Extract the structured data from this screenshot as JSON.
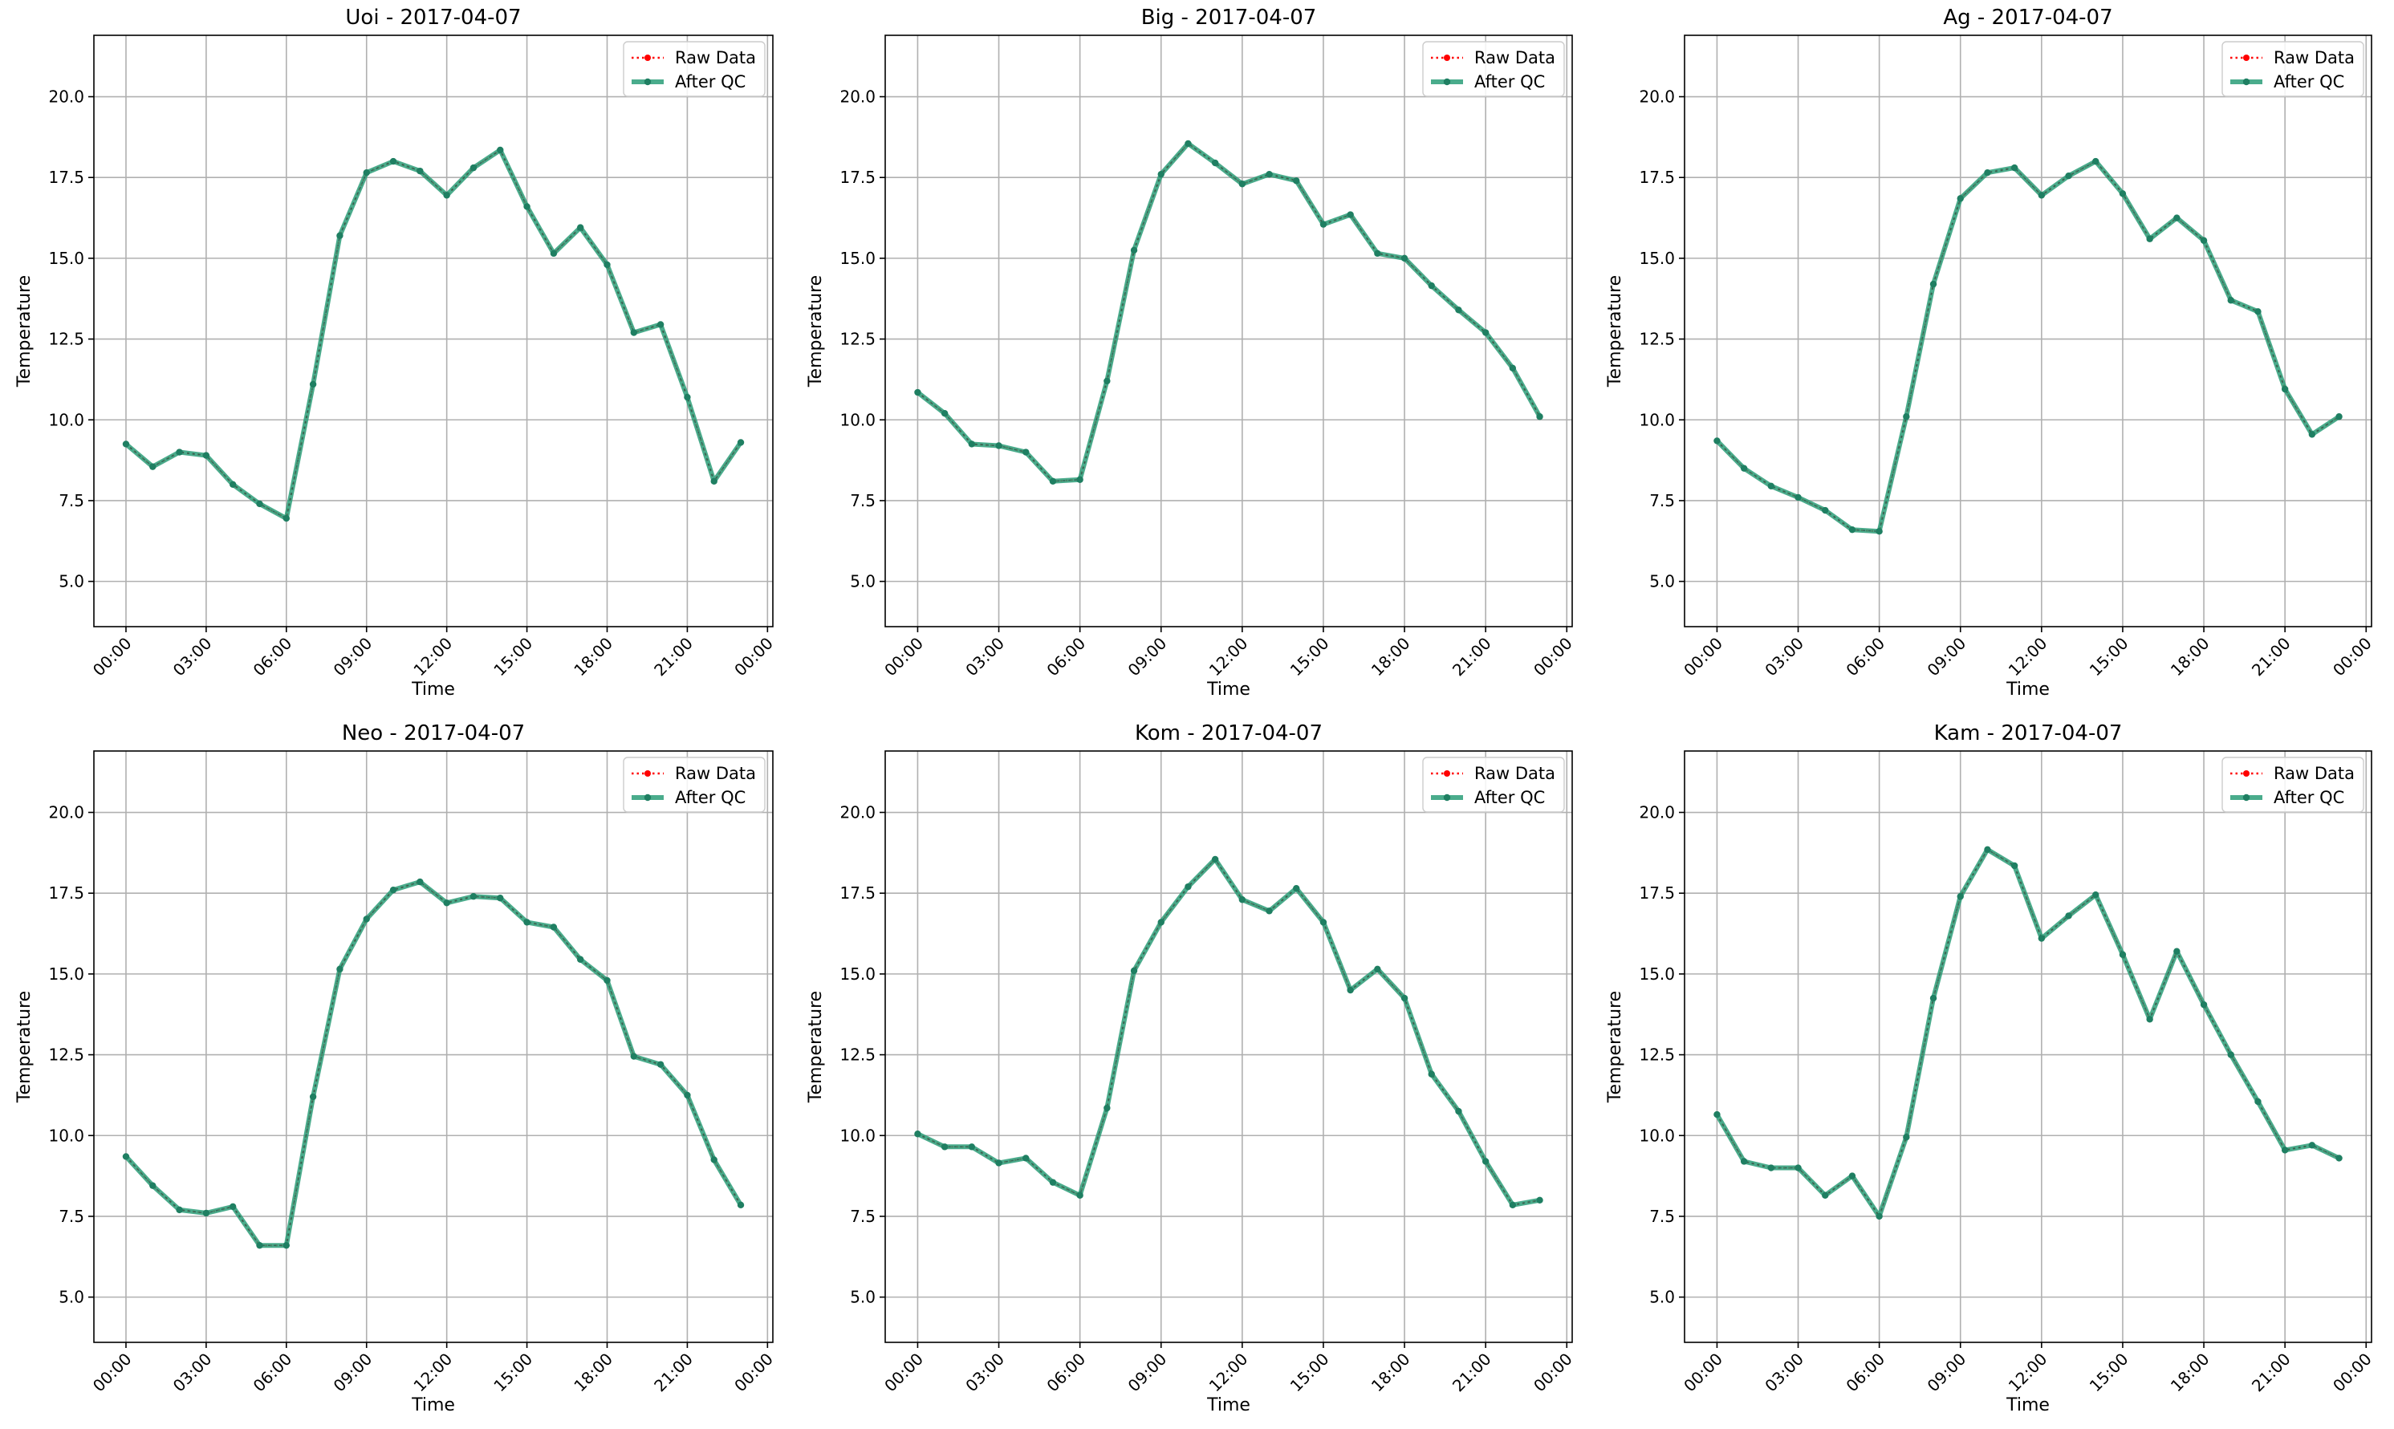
{
  "figure": {
    "legend_labels": {
      "raw": "Raw Data",
      "qc": "After QC"
    },
    "colors": {
      "raw": "#ff0000",
      "qc": "#2a9d78",
      "qc_marker": "#1f7f62",
      "grid": "#b0b0b0"
    }
  },
  "chart_data": [
    {
      "type": "line",
      "title": "Uoi - 2017-04-07",
      "xlabel": "Time",
      "ylabel": "Temperature",
      "x_ticks": [
        "00:00",
        "03:00",
        "06:00",
        "09:00",
        "12:00",
        "15:00",
        "18:00",
        "21:00",
        "00:00"
      ],
      "y_ticks": [
        "5.0",
        "7.5",
        "10.0",
        "12.5",
        "15.0",
        "17.5",
        "20.0"
      ],
      "xlim_hours": [
        -1.2,
        24.2
      ],
      "ylim": [
        3.6,
        21.9
      ],
      "grid": true,
      "legend": "upper-right",
      "x_hours": [
        0,
        1,
        2,
        3,
        4,
        5,
        6,
        7,
        8,
        9,
        10,
        11,
        12,
        13,
        14,
        15,
        16,
        17,
        18,
        19,
        20,
        21,
        22,
        23
      ],
      "series": [
        {
          "name": "Raw Data",
          "values": [
            9.25,
            8.55,
            9.0,
            8.9,
            8.0,
            7.4,
            6.95,
            11.1,
            15.7,
            17.65,
            18.0,
            17.7,
            16.95,
            17.8,
            18.35,
            16.6,
            15.15,
            15.95,
            14.8,
            12.7,
            12.95,
            10.7,
            8.1,
            9.3
          ]
        },
        {
          "name": "After QC",
          "values": [
            9.25,
            8.55,
            9.0,
            8.9,
            8.0,
            7.4,
            6.95,
            11.1,
            15.7,
            17.65,
            18.0,
            17.7,
            16.95,
            17.8,
            18.35,
            16.6,
            15.15,
            15.95,
            14.8,
            12.7,
            12.95,
            10.7,
            8.1,
            9.3
          ]
        }
      ]
    },
    {
      "type": "line",
      "title": "Big - 2017-04-07",
      "xlabel": "Time",
      "ylabel": "Temperature",
      "x_ticks": [
        "00:00",
        "03:00",
        "06:00",
        "09:00",
        "12:00",
        "15:00",
        "18:00",
        "21:00",
        "00:00"
      ],
      "y_ticks": [
        "5.0",
        "7.5",
        "10.0",
        "12.5",
        "15.0",
        "17.5",
        "20.0"
      ],
      "xlim_hours": [
        -1.2,
        24.2
      ],
      "ylim": [
        3.6,
        21.9
      ],
      "grid": true,
      "legend": "upper-right",
      "x_hours": [
        0,
        1,
        2,
        3,
        4,
        5,
        6,
        7,
        8,
        9,
        10,
        11,
        12,
        13,
        14,
        15,
        16,
        17,
        18,
        19,
        20,
        21,
        22,
        23
      ],
      "series": [
        {
          "name": "Raw Data",
          "values": [
            10.85,
            10.2,
            9.25,
            9.2,
            9.0,
            8.1,
            8.15,
            11.2,
            15.25,
            17.6,
            18.55,
            17.95,
            17.3,
            17.6,
            17.4,
            16.05,
            16.35,
            15.15,
            15.0,
            14.15,
            13.4,
            12.7,
            11.6,
            10.1
          ]
        },
        {
          "name": "After QC",
          "values": [
            10.85,
            10.2,
            9.25,
            9.2,
            9.0,
            8.1,
            8.15,
            11.2,
            15.25,
            17.6,
            18.55,
            17.95,
            17.3,
            17.6,
            17.4,
            16.05,
            16.35,
            15.15,
            15.0,
            14.15,
            13.4,
            12.7,
            11.6,
            10.1
          ]
        }
      ]
    },
    {
      "type": "line",
      "title": "Ag - 2017-04-07",
      "xlabel": "Time",
      "ylabel": "Temperature",
      "x_ticks": [
        "00:00",
        "03:00",
        "06:00",
        "09:00",
        "12:00",
        "15:00",
        "18:00",
        "21:00",
        "00:00"
      ],
      "y_ticks": [
        "5.0",
        "7.5",
        "10.0",
        "12.5",
        "15.0",
        "17.5",
        "20.0"
      ],
      "xlim_hours": [
        -1.2,
        24.2
      ],
      "ylim": [
        3.6,
        21.9
      ],
      "grid": true,
      "legend": "upper-right",
      "x_hours": [
        0,
        1,
        2,
        3,
        4,
        5,
        6,
        7,
        8,
        9,
        10,
        11,
        12,
        13,
        14,
        15,
        16,
        17,
        18,
        19,
        20,
        21,
        22,
        23
      ],
      "series": [
        {
          "name": "Raw Data",
          "values": [
            9.35,
            8.5,
            7.95,
            7.6,
            7.2,
            6.6,
            6.55,
            10.1,
            14.2,
            16.85,
            17.65,
            17.8,
            16.95,
            17.55,
            18.0,
            17.0,
            15.6,
            16.25,
            15.55,
            13.7,
            13.35,
            10.95,
            9.55,
            10.1
          ]
        },
        {
          "name": "After QC",
          "values": [
            9.35,
            8.5,
            7.95,
            7.6,
            7.2,
            6.6,
            6.55,
            10.1,
            14.2,
            16.85,
            17.65,
            17.8,
            16.95,
            17.55,
            18.0,
            17.0,
            15.6,
            16.25,
            15.55,
            13.7,
            13.35,
            10.95,
            9.55,
            10.1
          ]
        }
      ]
    },
    {
      "type": "line",
      "title": "Neo - 2017-04-07",
      "xlabel": "Time",
      "ylabel": "Temperature",
      "x_ticks": [
        "00:00",
        "03:00",
        "06:00",
        "09:00",
        "12:00",
        "15:00",
        "18:00",
        "21:00",
        "00:00"
      ],
      "y_ticks": [
        "5.0",
        "7.5",
        "10.0",
        "12.5",
        "15.0",
        "17.5",
        "20.0"
      ],
      "xlim_hours": [
        -1.2,
        24.2
      ],
      "ylim": [
        3.6,
        21.9
      ],
      "grid": true,
      "legend": "upper-right",
      "x_hours": [
        0,
        1,
        2,
        3,
        4,
        5,
        6,
        7,
        8,
        9,
        10,
        11,
        12,
        13,
        14,
        15,
        16,
        17,
        18,
        19,
        20,
        21,
        22,
        23
      ],
      "series": [
        {
          "name": "Raw Data",
          "values": [
            9.35,
            8.45,
            7.7,
            7.6,
            7.8,
            6.6,
            6.6,
            11.2,
            15.15,
            16.7,
            17.6,
            17.85,
            17.2,
            17.4,
            17.35,
            16.6,
            16.45,
            15.45,
            14.8,
            12.45,
            12.2,
            11.25,
            9.25,
            7.85
          ]
        },
        {
          "name": "After QC",
          "values": [
            9.35,
            8.45,
            7.7,
            7.6,
            7.8,
            6.6,
            6.6,
            11.2,
            15.15,
            16.7,
            17.6,
            17.85,
            17.2,
            17.4,
            17.35,
            16.6,
            16.45,
            15.45,
            14.8,
            12.45,
            12.2,
            11.25,
            9.25,
            7.85
          ]
        }
      ]
    },
    {
      "type": "line",
      "title": "Kom - 2017-04-07",
      "xlabel": "Time",
      "ylabel": "Temperature",
      "x_ticks": [
        "00:00",
        "03:00",
        "06:00",
        "09:00",
        "12:00",
        "15:00",
        "18:00",
        "21:00",
        "00:00"
      ],
      "y_ticks": [
        "5.0",
        "7.5",
        "10.0",
        "12.5",
        "15.0",
        "17.5",
        "20.0"
      ],
      "xlim_hours": [
        -1.2,
        24.2
      ],
      "ylim": [
        3.6,
        21.9
      ],
      "grid": true,
      "legend": "upper-right",
      "x_hours": [
        0,
        1,
        2,
        3,
        4,
        5,
        6,
        7,
        8,
        9,
        10,
        11,
        12,
        13,
        14,
        15,
        16,
        17,
        18,
        19,
        20,
        21,
        22,
        23
      ],
      "series": [
        {
          "name": "Raw Data",
          "values": [
            10.05,
            9.65,
            9.65,
            9.15,
            9.3,
            8.55,
            8.15,
            10.85,
            15.1,
            16.6,
            17.7,
            18.55,
            17.3,
            16.95,
            17.65,
            16.6,
            14.5,
            15.15,
            14.25,
            11.9,
            10.75,
            9.2,
            7.85,
            8.0
          ]
        },
        {
          "name": "After QC",
          "values": [
            10.05,
            9.65,
            9.65,
            9.15,
            9.3,
            8.55,
            8.15,
            10.85,
            15.1,
            16.6,
            17.7,
            18.55,
            17.3,
            16.95,
            17.65,
            16.6,
            14.5,
            15.15,
            14.25,
            11.9,
            10.75,
            9.2,
            7.85,
            8.0
          ]
        }
      ]
    },
    {
      "type": "line",
      "title": "Kam - 2017-04-07",
      "xlabel": "Time",
      "ylabel": "Temperature",
      "x_ticks": [
        "00:00",
        "03:00",
        "06:00",
        "09:00",
        "12:00",
        "15:00",
        "18:00",
        "21:00",
        "00:00"
      ],
      "y_ticks": [
        "5.0",
        "7.5",
        "10.0",
        "12.5",
        "15.0",
        "17.5",
        "20.0"
      ],
      "xlim_hours": [
        -1.2,
        24.2
      ],
      "ylim": [
        3.6,
        21.9
      ],
      "grid": true,
      "legend": "upper-right",
      "x_hours": [
        0,
        1,
        2,
        3,
        4,
        5,
        6,
        7,
        8,
        9,
        10,
        11,
        12,
        13,
        14,
        15,
        16,
        17,
        18,
        19,
        20,
        21,
        22,
        23
      ],
      "series": [
        {
          "name": "Raw Data",
          "values": [
            10.65,
            9.2,
            9.0,
            9.0,
            8.15,
            8.75,
            7.5,
            9.95,
            14.25,
            17.4,
            18.85,
            18.35,
            16.1,
            16.8,
            17.45,
            15.6,
            13.6,
            15.7,
            14.05,
            12.5,
            11.05,
            9.55,
            9.7,
            9.3
          ]
        },
        {
          "name": "After QC",
          "values": [
            10.65,
            9.2,
            9.0,
            9.0,
            8.15,
            8.75,
            7.5,
            9.95,
            14.25,
            17.4,
            18.85,
            18.35,
            16.1,
            16.8,
            17.45,
            15.6,
            13.6,
            15.7,
            14.05,
            12.5,
            11.05,
            9.55,
            9.7,
            9.3
          ]
        }
      ]
    }
  ]
}
